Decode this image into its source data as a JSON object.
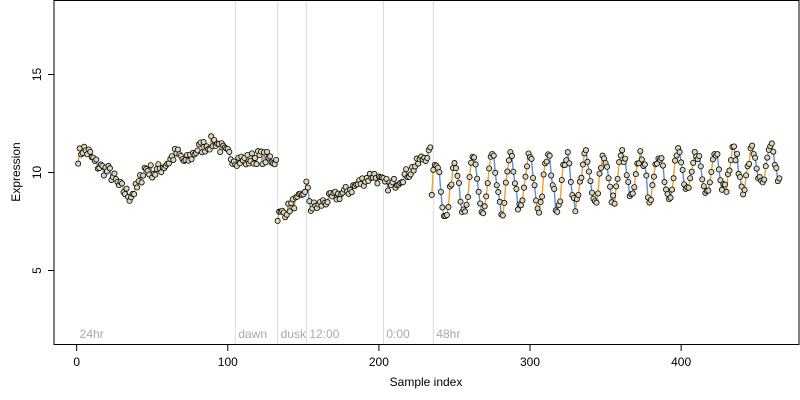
{
  "chart_data": {
    "type": "line",
    "xlabel": "Sample index",
    "ylabel": "Expression",
    "xlim": [
      -15,
      478
    ],
    "ylim": [
      1.2,
      18.8
    ],
    "x_ticks": [
      0,
      100,
      200,
      300,
      400
    ],
    "y_ticks": [
      5,
      10,
      15
    ],
    "grid": false,
    "colors": {
      "line": "#a0a0a0",
      "up": "#f0a030",
      "down": "#5c8fd6",
      "point_fill": "#dcd6b8",
      "divider": "#dcdcdc"
    },
    "regions": [
      {
        "x": 0,
        "label": "24hr"
      },
      {
        "x": 105,
        "label": "dawn"
      },
      {
        "x": 133,
        "label": "dusk"
      },
      {
        "x": 152,
        "label": "12:00"
      },
      {
        "x": 203,
        "label": "0:00"
      },
      {
        "x": 236,
        "label": "48hr"
      }
    ],
    "series": [
      {
        "segments": [
          {
            "x_start": 1,
            "x_end": 132,
            "knots": [
              [
                1,
                10.8
              ],
              [
                4,
                11.2
              ],
              [
                8,
                11.0
              ],
              [
                12,
                10.5
              ],
              [
                17,
                10.2
              ],
              [
                22,
                10.0
              ],
              [
                28,
                9.3
              ],
              [
                35,
                8.8
              ],
              [
                40,
                9.2
              ],
              [
                45,
                10.2
              ],
              [
                52,
                10.0
              ],
              [
                60,
                10.5
              ],
              [
                66,
                11.0
              ],
              [
                72,
                10.5
              ],
              [
                80,
                11.2
              ],
              [
                86,
                11.4
              ],
              [
                92,
                11.6
              ],
              [
                98,
                11.0
              ],
              [
                105,
                10.7
              ],
              [
                112,
                10.6
              ],
              [
                120,
                10.8
              ],
              [
                128,
                10.7
              ],
              [
                132,
                10.6
              ]
            ],
            "noise": 0.35
          },
          {
            "x_start": 133,
            "x_end": 234,
            "knots": [
              [
                133,
                7.8
              ],
              [
                138,
                8.0
              ],
              [
                143,
                8.4
              ],
              [
                149,
                8.7
              ],
              [
                152,
                9.4
              ],
              [
                155,
                8.2
              ],
              [
                160,
                8.3
              ],
              [
                166,
                8.6
              ],
              [
                172,
                8.8
              ],
              [
                178,
                9.0
              ],
              [
                184,
                9.3
              ],
              [
                190,
                9.6
              ],
              [
                196,
                9.9
              ],
              [
                202,
                9.5
              ],
              [
                208,
                9.3
              ],
              [
                214,
                9.7
              ],
              [
                220,
                10.0
              ],
              [
                226,
                10.5
              ],
              [
                230,
                10.8
              ],
              [
                234,
                11.0
              ]
            ],
            "noise": 0.3
          },
          {
            "x_start": 235,
            "x_end": 465,
            "sine": {
              "base_start": 9.1,
              "base_end": 10.3,
              "amp_start": 1.5,
              "amp_end": 0.9,
              "period": 12.3,
              "phase": 235
            },
            "noise": 0.35
          }
        ]
      }
    ]
  }
}
